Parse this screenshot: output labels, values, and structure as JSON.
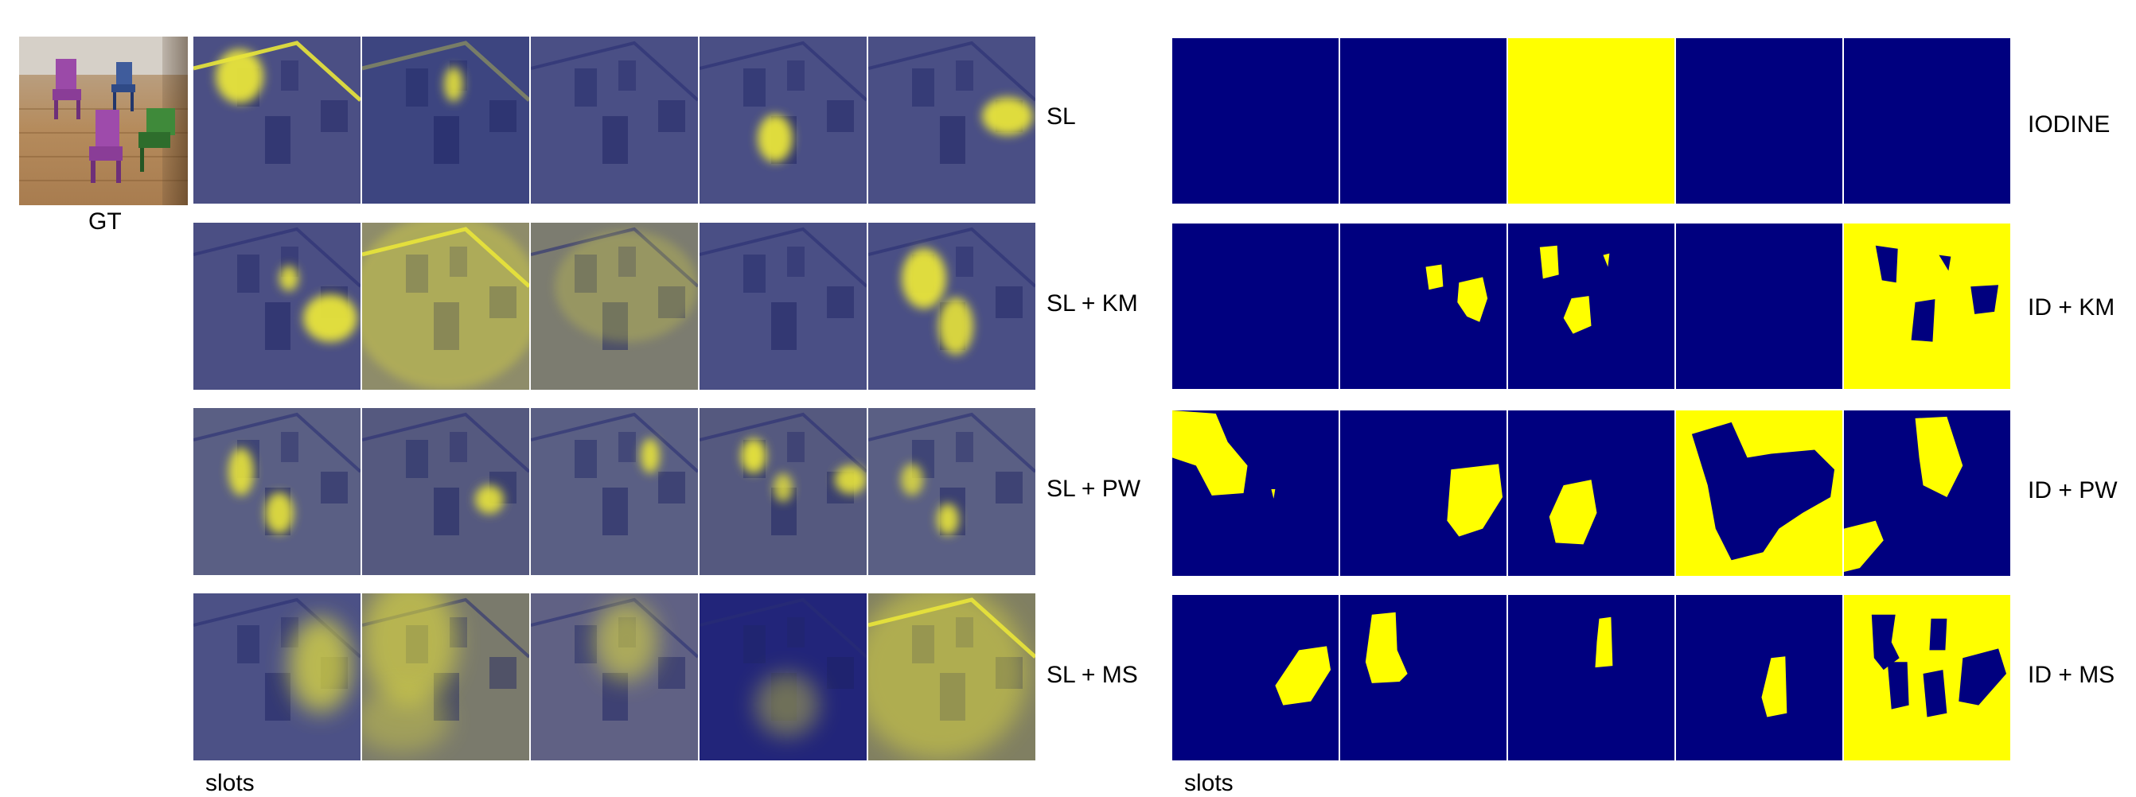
{
  "left_figure": {
    "gt_label": "GT",
    "slots_label": "slots",
    "rows": [
      {
        "label": "SL"
      },
      {
        "label": "SL + KM"
      },
      {
        "label": "SL + PW"
      },
      {
        "label": "SL + MS"
      }
    ]
  },
  "right_figure": {
    "slots_label": "slots",
    "rows": [
      {
        "label": "IODINE"
      },
      {
        "label": "ID + KM"
      },
      {
        "label": "ID + PW"
      },
      {
        "label": "ID + MS"
      }
    ]
  },
  "colors": {
    "mask_navy": "#00007f",
    "mask_yellow": "#ffff00",
    "soft_base": "#4a4f80",
    "soft_yellow": "#e9e53a"
  },
  "icons": {
    "gt_image": "chair-scene-photo"
  }
}
